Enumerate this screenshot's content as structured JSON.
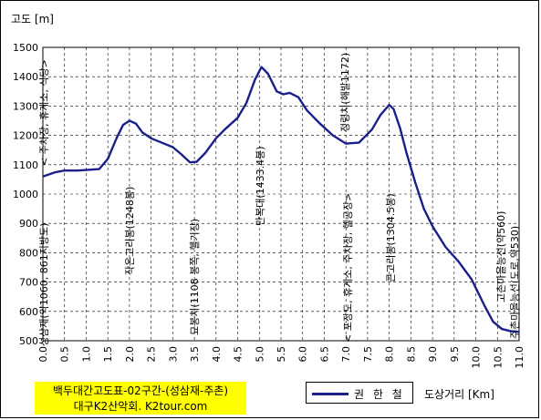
{
  "chart_data": {
    "type": "line",
    "ylabel": "고도 [m]",
    "xlabel": "도상거리 [Km]",
    "title": [
      "백두대간고도표-02구간-(성삼재-주촌)",
      "대구K2산악회. K2tour.com"
    ],
    "xlim": [
      0,
      11
    ],
    "ylim": [
      500,
      1500
    ],
    "xticks": [
      "0.0",
      "0.5",
      "1.0",
      "1.5",
      "2.0",
      "2.5",
      "3.0",
      "3.5",
      "4.0",
      "4.5",
      "5.0",
      "5.5",
      "6.0",
      "6.5",
      "7.0",
      "7.5",
      "8.0",
      "8.5",
      "9.0",
      "9.5",
      "10.0",
      "10.5",
      "11.0"
    ],
    "yticks": [
      "500",
      "600",
      "700",
      "800",
      "900",
      "1000",
      "1100",
      "1200",
      "1300",
      "1400",
      "1500"
    ],
    "grid": true,
    "series": [
      {
        "name": "권 한 철",
        "color": "#1a1f8c",
        "x": [
          0.0,
          0.3,
          0.5,
          0.8,
          1.0,
          1.3,
          1.5,
          1.7,
          1.85,
          2.0,
          2.15,
          2.3,
          2.5,
          2.7,
          3.0,
          3.2,
          3.4,
          3.55,
          3.75,
          4.0,
          4.2,
          4.5,
          4.7,
          4.9,
          5.05,
          5.2,
          5.4,
          5.55,
          5.7,
          5.9,
          6.1,
          6.4,
          6.7,
          7.0,
          7.3,
          7.6,
          7.8,
          8.0,
          8.1,
          8.25,
          8.4,
          8.6,
          8.8,
          9.0,
          9.3,
          9.6,
          9.9,
          10.2,
          10.4,
          10.6,
          10.8,
          11.0
        ],
        "y": [
          1060,
          1075,
          1080,
          1080,
          1082,
          1085,
          1120,
          1190,
          1235,
          1250,
          1240,
          1210,
          1190,
          1178,
          1160,
          1135,
          1108,
          1110,
          1140,
          1190,
          1220,
          1260,
          1310,
          1390,
          1433,
          1410,
          1350,
          1340,
          1345,
          1330,
          1285,
          1240,
          1200,
          1172,
          1175,
          1220,
          1270,
          1304,
          1290,
          1225,
          1140,
          1040,
          950,
          890,
          820,
          770,
          710,
          620,
          565,
          540,
          533,
          530
        ]
      }
    ],
    "annotations": [
      {
        "x": 0.0,
        "text": "성삼재(약1060, 861지방도)"
      },
      {
        "x": 0.0,
        "text": "< 주차장, 휴게소, 식당>"
      },
      {
        "x": 2.0,
        "text": "작은고리봉(1248봉)"
      },
      {
        "x": 3.5,
        "text": "묘봉치(1108 봉쪽, 헬기장)"
      },
      {
        "x": 5.05,
        "text": "만복대(1433.4봉)"
      },
      {
        "x": 7.0,
        "text": "정령치(해발1172)"
      },
      {
        "x": 7.0,
        "text": "< 포장도, 휴게소, 주차장, 헬공장>"
      },
      {
        "x": 8.0,
        "text": "큰고리봉(1304.5봉)"
      },
      {
        "x": 10.6,
        "text": "고촌마을능선(약560)"
      },
      {
        "x": 10.85,
        "text": "주촌마을능선(도로,약530)"
      }
    ]
  },
  "legend": {
    "label": "권 한 철"
  },
  "title_box": {
    "line1": "백두대간고도표-02구간-(성삼재-주촌)",
    "line2": "대구K2산악회. K2tour.com"
  },
  "axes": {
    "ylabel": "고도 [m]",
    "xlabel": "도상거리 [Km]"
  }
}
